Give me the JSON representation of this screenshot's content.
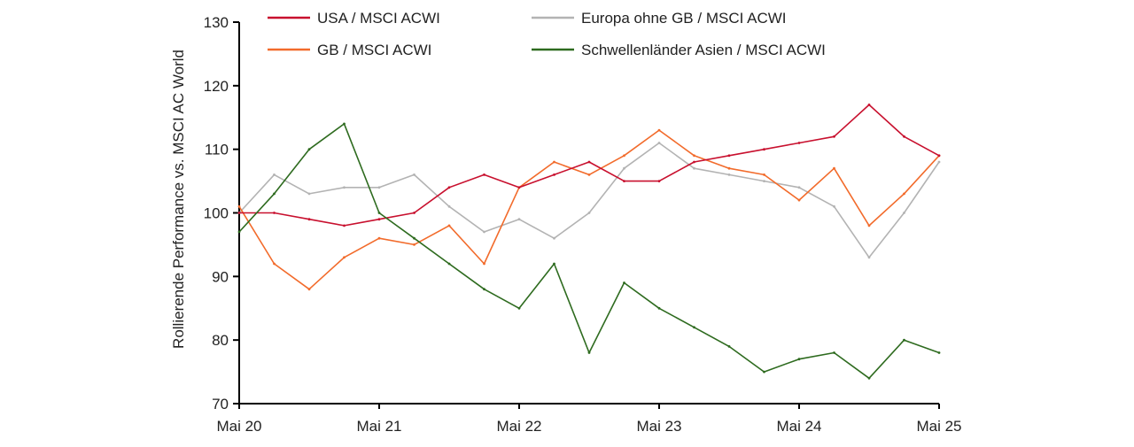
{
  "chart_data": {
    "type": "line",
    "title": "",
    "xlabel": "",
    "ylabel": "Rollierende Performance vs. MSCI AC World",
    "ylim": [
      70,
      130
    ],
    "yticks": [
      70,
      80,
      90,
      100,
      110,
      120,
      130
    ],
    "xlim": [
      "2020-05",
      "2025-05"
    ],
    "xticks": [
      "Mai 20",
      "Mai 21",
      "Mai 22",
      "Mai 23",
      "Mai 24",
      "Mai 25"
    ],
    "grid": false,
    "legend_position": "top",
    "x": [
      "2020-05",
      "2020-08",
      "2020-11",
      "2021-02",
      "2021-05",
      "2021-08",
      "2021-11",
      "2022-02",
      "2022-05",
      "2022-08",
      "2022-11",
      "2023-02",
      "2023-05",
      "2023-08",
      "2023-11",
      "2024-02",
      "2024-05",
      "2024-08",
      "2024-11",
      "2025-02",
      "2025-05"
    ],
    "series": [
      {
        "name": "USA / MSCI ACWI",
        "color": "#c8102e",
        "values": [
          100,
          100,
          99,
          98,
          99,
          100,
          104,
          106,
          104,
          106,
          108,
          105,
          105,
          108,
          109,
          110,
          111,
          112,
          117,
          112,
          109
        ]
      },
      {
        "name": "Europa ohne GB / MSCI ACWI",
        "color": "#b3b3b3",
        "values": [
          100,
          106,
          103,
          104,
          104,
          106,
          101,
          97,
          99,
          96,
          100,
          107,
          111,
          107,
          106,
          105,
          104,
          101,
          93,
          100,
          108
        ]
      },
      {
        "name": "GB / MSCI ACWI",
        "color": "#f26b2b",
        "values": [
          101,
          92,
          88,
          93,
          96,
          95,
          98,
          92,
          104,
          108,
          106,
          109,
          113,
          109,
          107,
          106,
          102,
          107,
          98,
          103,
          109
        ]
      },
      {
        "name": "Schwellenländer Asien / MSCI ACWI",
        "color": "#2e6b1f",
        "values": [
          97,
          103,
          110,
          114,
          100,
          96,
          92,
          88,
          85,
          92,
          78,
          89,
          85,
          82,
          79,
          75,
          77,
          78,
          74,
          80,
          78
        ]
      }
    ]
  }
}
